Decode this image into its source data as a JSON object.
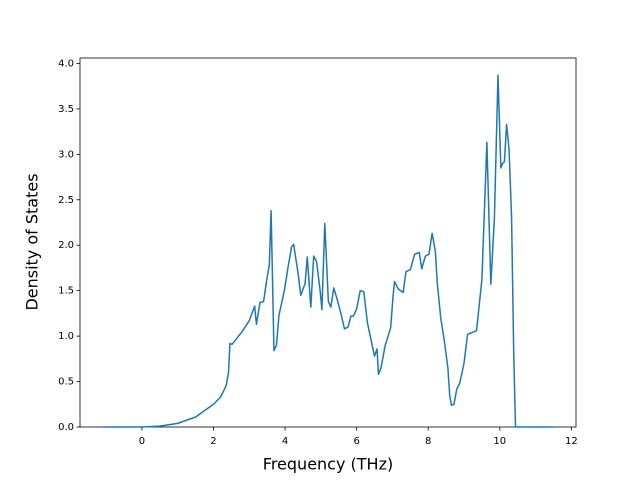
{
  "chart_data": {
    "type": "line",
    "x_label": "Frequency (THz)",
    "y_label": "Density of States",
    "x": [
      -1.1,
      0,
      0.5,
      1.0,
      1.5,
      2.0,
      2.2,
      2.35,
      2.42,
      2.46,
      2.52,
      2.6,
      2.8,
      3.0,
      3.15,
      3.2,
      3.3,
      3.4,
      3.5,
      3.56,
      3.61,
      3.69,
      3.76,
      3.83,
      3.98,
      4.08,
      4.18,
      4.24,
      4.36,
      4.44,
      4.56,
      4.62,
      4.72,
      4.8,
      4.88,
      4.98,
      5.03,
      5.11,
      5.21,
      5.28,
      5.36,
      5.46,
      5.56,
      5.66,
      5.76,
      5.84,
      5.91,
      6.0,
      6.1,
      6.2,
      6.3,
      6.45,
      6.5,
      6.57,
      6.61,
      6.68,
      6.8,
      6.95,
      7.02,
      7.06,
      7.16,
      7.3,
      7.38,
      7.5,
      7.62,
      7.75,
      7.82,
      7.92,
      8.02,
      8.11,
      8.2,
      8.25,
      8.35,
      8.45,
      8.55,
      8.6,
      8.65,
      8.72,
      8.8,
      8.88,
      9.0,
      9.1,
      9.35,
      9.5,
      9.64,
      9.75,
      9.85,
      9.95,
      10.03,
      10.08,
      10.13,
      10.19,
      10.26,
      10.33,
      10.39,
      10.44,
      11.5
    ],
    "series": [
      {
        "name": "DOS",
        "color": "#1f77b4",
        "values": [
          0,
          0,
          0.01,
          0.04,
          0.11,
          0.25,
          0.33,
          0.45,
          0.6,
          0.92,
          0.91,
          0.95,
          1.05,
          1.17,
          1.33,
          1.13,
          1.37,
          1.38,
          1.65,
          1.78,
          2.38,
          0.84,
          0.9,
          1.23,
          1.5,
          1.75,
          1.98,
          2.01,
          1.7,
          1.45,
          1.58,
          1.87,
          1.32,
          1.88,
          1.82,
          1.5,
          1.29,
          2.24,
          1.38,
          1.32,
          1.53,
          1.4,
          1.25,
          1.08,
          1.1,
          1.22,
          1.22,
          1.3,
          1.5,
          1.49,
          1.15,
          0.87,
          0.78,
          0.86,
          0.58,
          0.65,
          0.9,
          1.09,
          1.45,
          1.6,
          1.52,
          1.48,
          1.71,
          1.73,
          1.9,
          1.92,
          1.74,
          1.88,
          1.9,
          2.13,
          1.93,
          1.6,
          1.2,
          0.95,
          0.65,
          0.35,
          0.24,
          0.25,
          0.42,
          0.48,
          0.7,
          1.02,
          1.06,
          1.62,
          3.13,
          1.57,
          2.3,
          3.87,
          2.85,
          2.9,
          2.92,
          3.33,
          3.05,
          2.3,
          0.8,
          0,
          0
        ]
      }
    ],
    "xlim": [
      -1.73,
      12.13
    ],
    "ylim": [
      0,
      4.06
    ],
    "xticks": [
      0,
      2,
      4,
      6,
      8,
      10,
      12
    ],
    "yticks": [
      {
        "value": 0,
        "label": "0.0"
      },
      {
        "value": 0.5,
        "label": "0.5"
      },
      {
        "value": 1,
        "label": "1.0"
      },
      {
        "value": 1.5,
        "label": "1.5"
      },
      {
        "value": 2,
        "label": "2.0"
      },
      {
        "value": 2.5,
        "label": "2.5"
      },
      {
        "value": 3,
        "label": "3.0"
      },
      {
        "value": 3.5,
        "label": "3.5"
      },
      {
        "value": 4,
        "label": "4.0"
      }
    ],
    "grid": false
  }
}
